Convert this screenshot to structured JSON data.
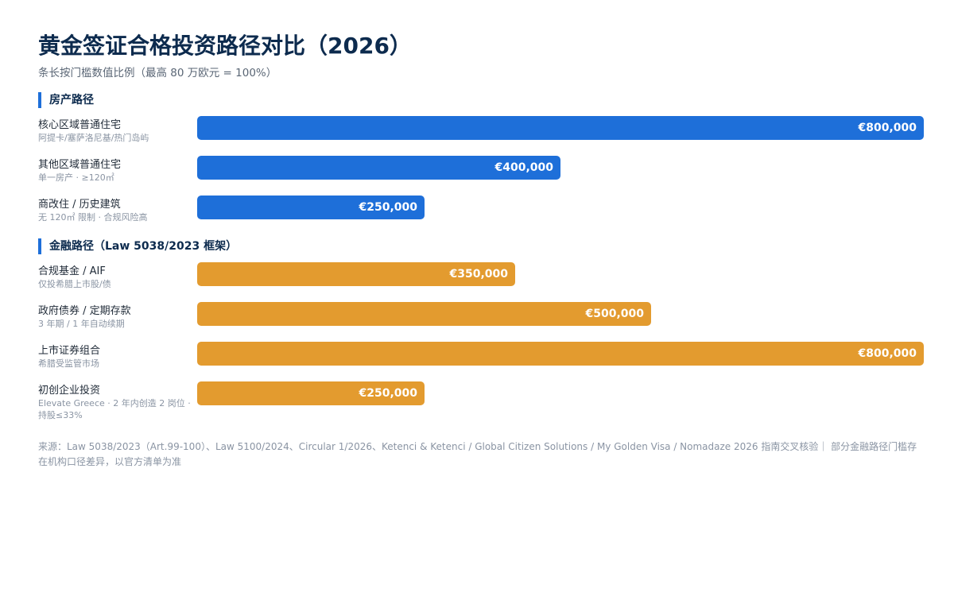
{
  "colors": {
    "property": "#1e6fd9",
    "finance": "#e39b2f"
  },
  "chart_data": {
    "type": "bar",
    "orientation": "horizontal",
    "title": "黄金签证合格投资路径对比（2026）",
    "subtitle": "条长按门槛数值比例（最高 80 万欧元 = 100%）",
    "xlim": [
      0,
      800000
    ],
    "groups": [
      {
        "name": "房产路径",
        "color_key": "property",
        "items": [
          {
            "label": "核心区域普通住宅",
            "note": "阿提卡/塞萨洛尼基/热门岛屿",
            "value": 800000,
            "value_label": "€800,000"
          },
          {
            "label": "其他区域普通住宅",
            "note": "单一房产 · ≥120㎡",
            "value": 400000,
            "value_label": "€400,000"
          },
          {
            "label": "商改住 / 历史建筑",
            "note": "无 120㎡ 限制 · 合规风险高",
            "value": 250000,
            "value_label": "€250,000"
          }
        ]
      },
      {
        "name": "金融路径（Law 5038/2023 框架）",
        "color_key": "finance",
        "items": [
          {
            "label": "合规基金 / AIF",
            "note": "仅投希腊上市股/债",
            "value": 350000,
            "value_label": "€350,000"
          },
          {
            "label": "政府债券 / 定期存款",
            "note": "3 年期 / 1 年自动续期",
            "value": 500000,
            "value_label": "€500,000"
          },
          {
            "label": "上市证券组合",
            "note": "希腊受监管市场",
            "value": 800000,
            "value_label": "€800,000"
          },
          {
            "label": "初创企业投资",
            "note": "Elevate Greece · 2 年内创造 2 岗位 · 持股≤33%",
            "value": 250000,
            "value_label": "€250,000"
          }
        ]
      }
    ]
  },
  "footer": "来源：Law 5038/2023（Art.99-100）、Law 5100/2024、Circular 1/2026、Ketenci & Ketenci / Global Citizen Solutions / My Golden Visa / Nomadaze 2026 指南交叉核验｜ 部分金融路径门槛存在机构口径差异，以官方清单为准"
}
